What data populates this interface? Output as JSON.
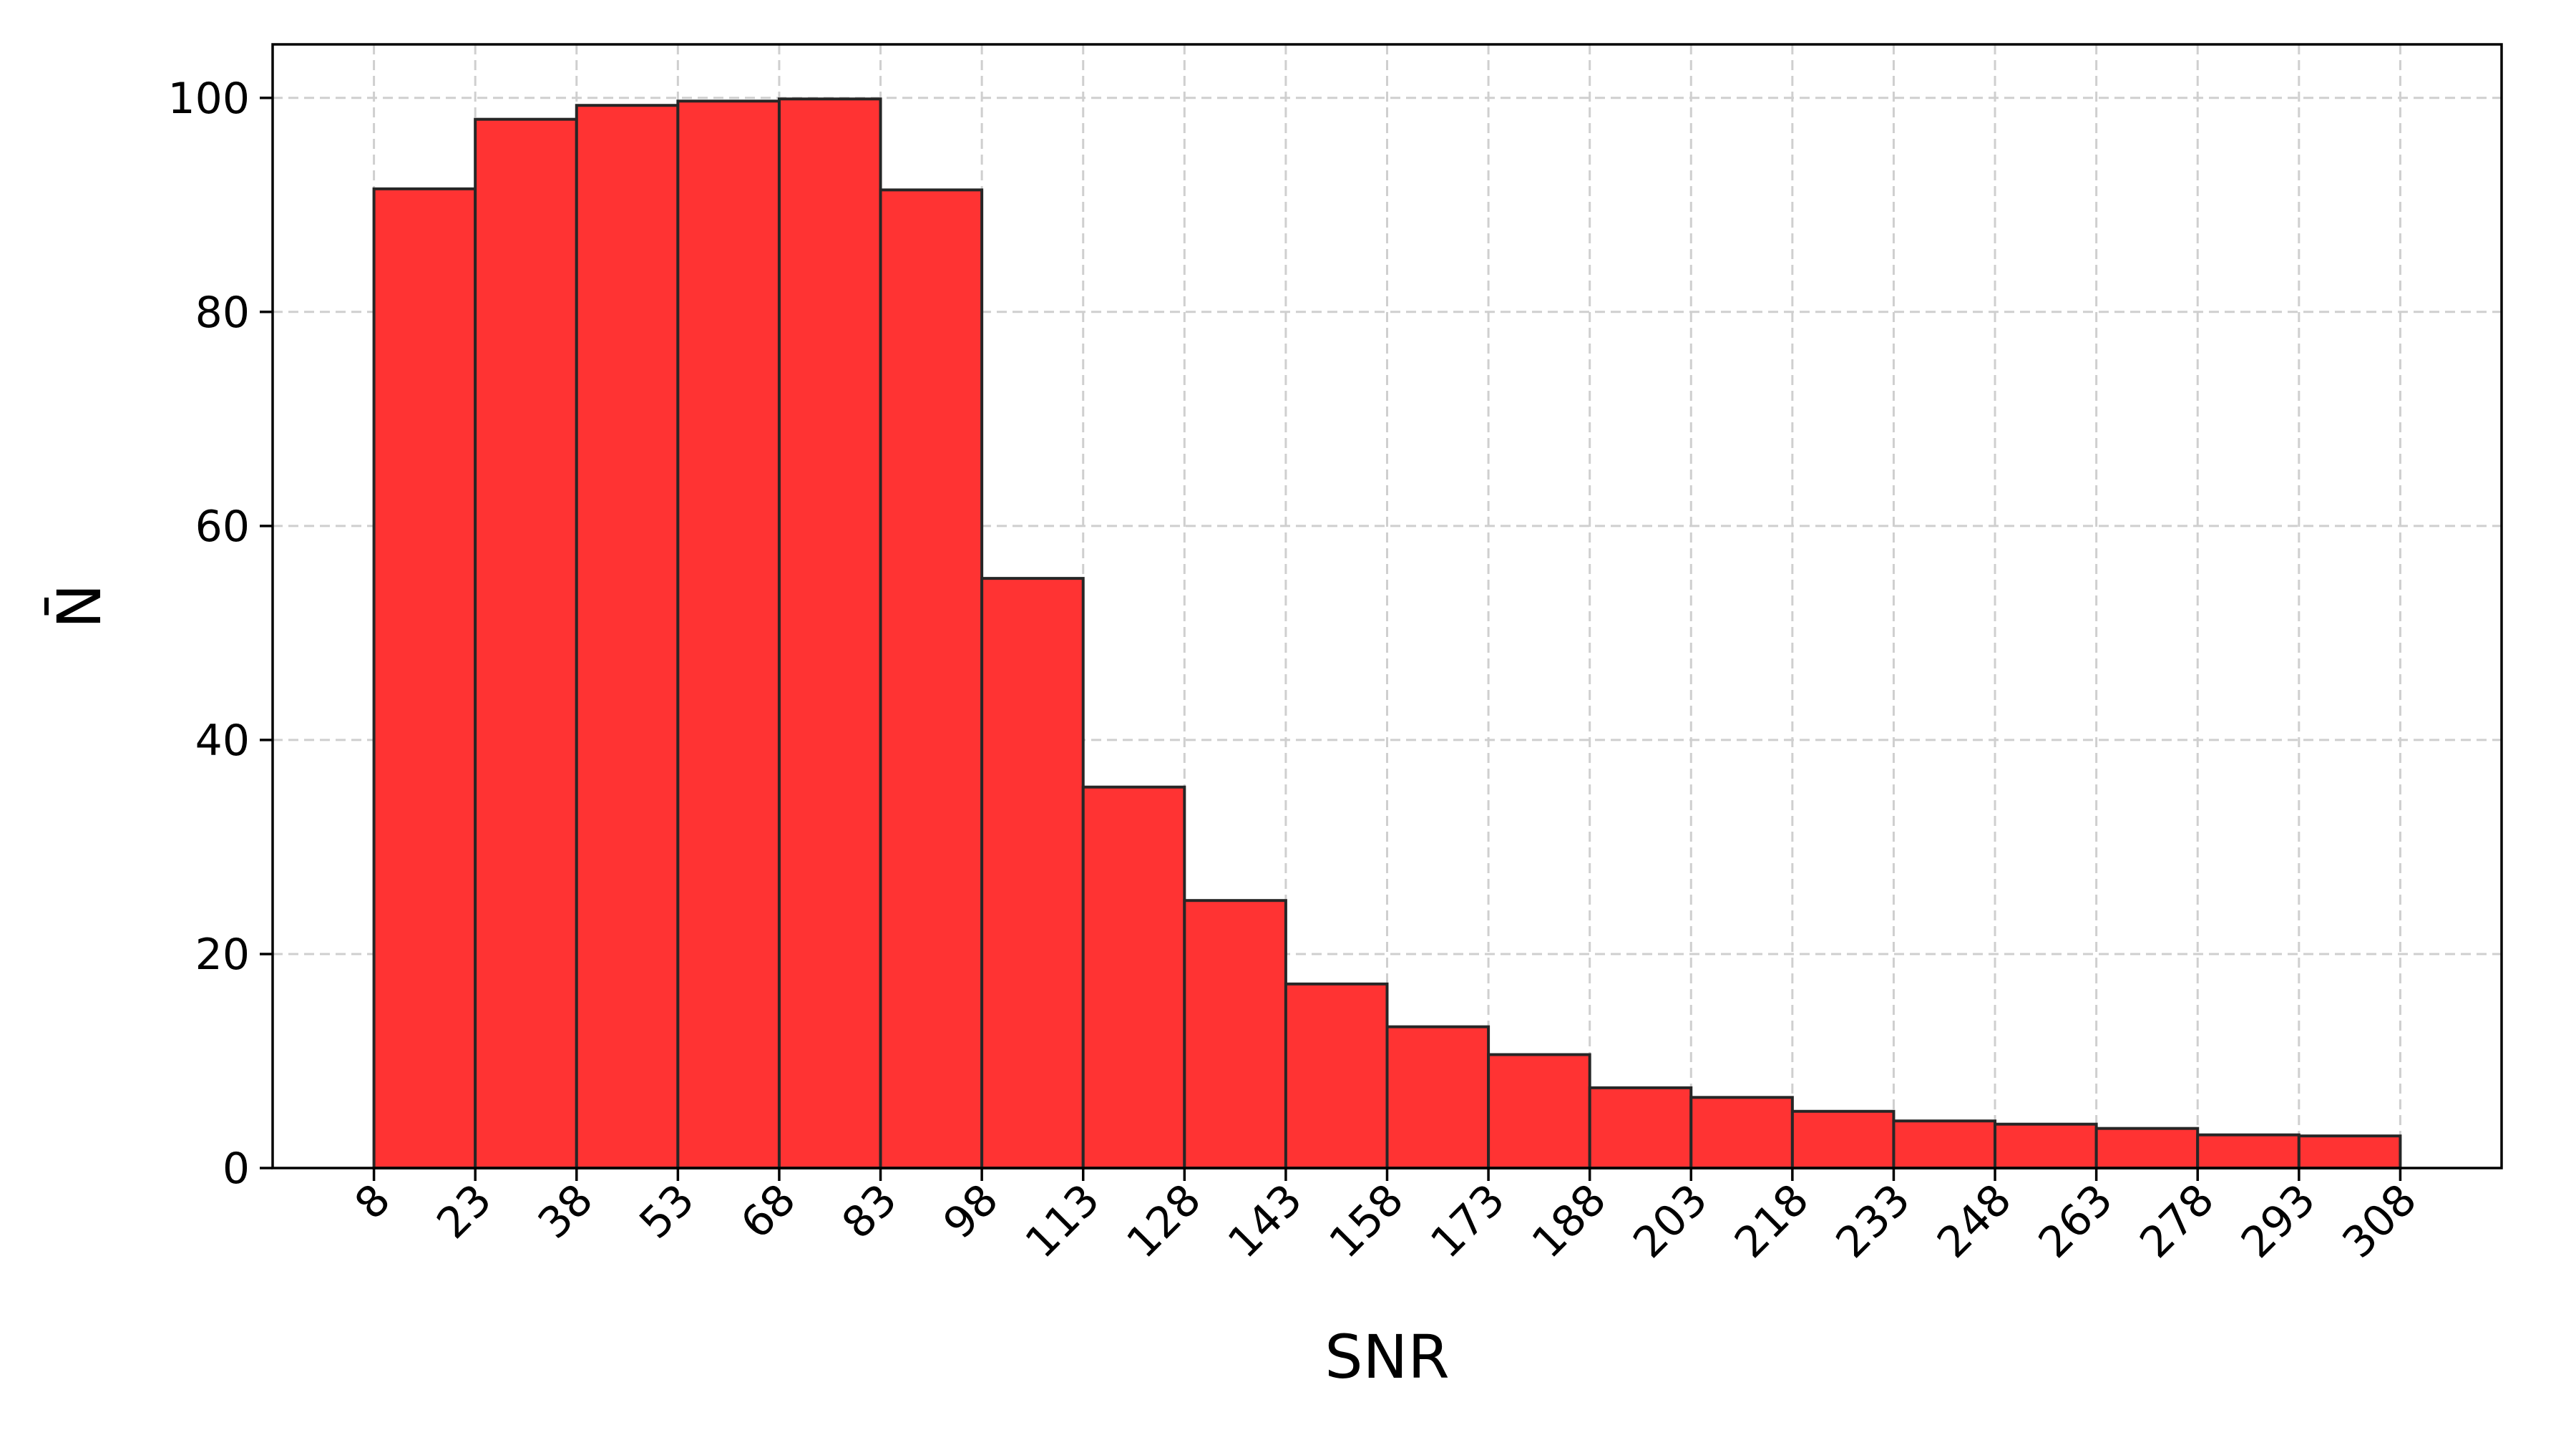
{
  "chart_data": {
    "type": "bar",
    "title": "",
    "xlabel": "SNR",
    "ylabel": "N̄",
    "bin_edges": [
      8,
      23,
      38,
      53,
      68,
      83,
      98,
      113,
      128,
      143,
      158,
      173,
      188,
      203,
      218,
      233,
      248,
      263,
      278,
      293,
      308
    ],
    "values": [
      91.5,
      98.0,
      99.3,
      99.7,
      99.9,
      91.4,
      55.1,
      35.6,
      25.0,
      17.2,
      13.2,
      10.6,
      7.5,
      6.6,
      5.3,
      4.4,
      4.1,
      3.7,
      3.1,
      3.0
    ],
    "x_ticks": [
      "8",
      "23",
      "38",
      "53",
      "68",
      "83",
      "98",
      "113",
      "128",
      "143",
      "158",
      "173",
      "188",
      "203",
      "218",
      "233",
      "248",
      "263",
      "278",
      "293",
      "308"
    ],
    "y_ticks": [
      "0",
      "20",
      "40",
      "60",
      "80",
      "100"
    ],
    "xlim": [
      -7,
      323
    ],
    "ylim": [
      0,
      105
    ],
    "grid": true,
    "bar_color": "#ff3333",
    "edge_color": "#262626",
    "grid_color": "#cfcfcf"
  }
}
